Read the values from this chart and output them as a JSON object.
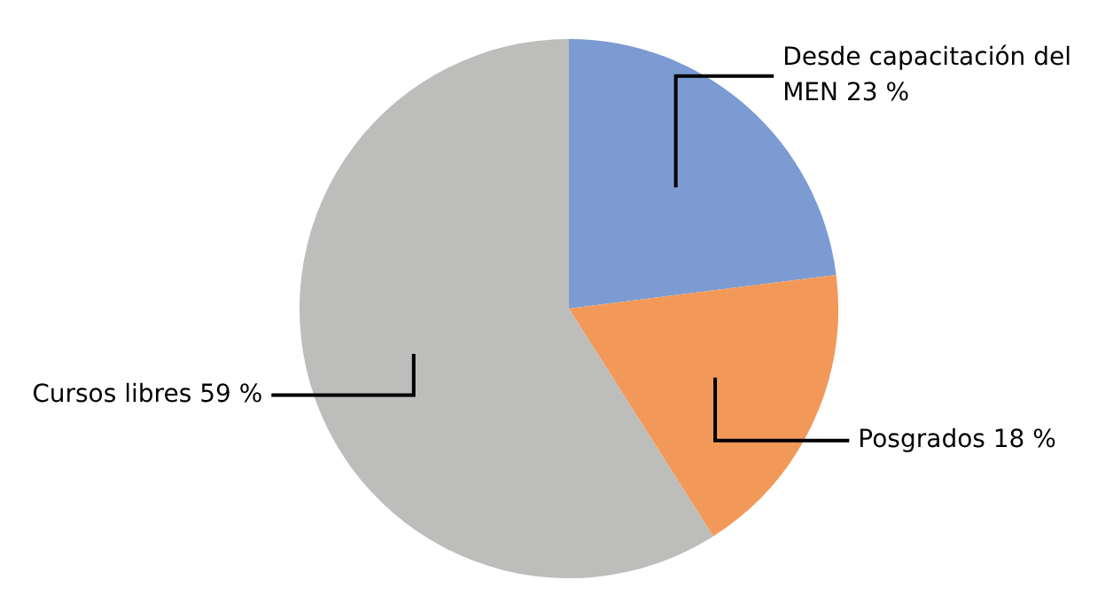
{
  "chart_data": {
    "type": "pie",
    "categories": [
      "Desde capacitación del MEN",
      "Posgrados",
      "Cursos libres"
    ],
    "values": [
      23,
      18,
      59
    ],
    "colors": [
      "#7b9bd2",
      "#f2995a",
      "#bdbdbb"
    ],
    "value_labels": [
      "23 %",
      "18 %",
      "59 %"
    ],
    "legend": false
  }
}
